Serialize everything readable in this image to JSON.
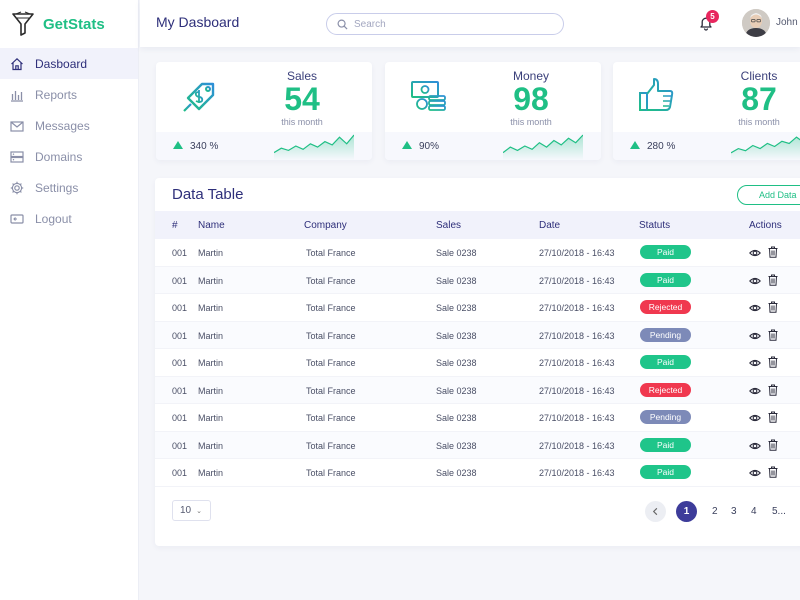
{
  "brand": {
    "part1": "Get",
    "part2": "Stats"
  },
  "sidebar": {
    "items": [
      {
        "label": "Dasboard",
        "icon": "home-icon",
        "active": true
      },
      {
        "label": "Reports",
        "icon": "bar-chart-icon",
        "active": false
      },
      {
        "label": "Messages",
        "icon": "mail-icon",
        "active": false
      },
      {
        "label": "Domains",
        "icon": "server-icon",
        "active": false
      },
      {
        "label": "Settings",
        "icon": "gear-icon",
        "active": false
      },
      {
        "label": "Logout",
        "icon": "logout-icon",
        "active": false
      }
    ]
  },
  "header": {
    "title": "My Dasboard",
    "search_placeholder": "Search",
    "notification_count": "5",
    "user_name": "John"
  },
  "cards": [
    {
      "label": "Sales",
      "value": "54",
      "sub": "this month",
      "change": "340 %",
      "icon": "price-tag-icon",
      "trend": [
        6,
        10,
        8,
        12,
        9,
        14,
        11,
        16,
        13,
        20,
        14,
        22
      ]
    },
    {
      "label": "Money",
      "value": "98",
      "sub": "this month",
      "change": "90%",
      "icon": "money-icon",
      "trend": [
        6,
        11,
        8,
        12,
        9,
        15,
        11,
        17,
        13,
        19,
        15,
        22
      ]
    },
    {
      "label": "Clients",
      "value": "87",
      "sub": "this month",
      "change": "280 %",
      "icon": "thumbs-up-icon",
      "trend": [
        5,
        9,
        7,
        12,
        9,
        14,
        11,
        16,
        14,
        20,
        15,
        22
      ]
    }
  ],
  "table": {
    "title": "Data Table",
    "add_label": "Add Data",
    "columns": [
      "#",
      "Name",
      "Company",
      "Sales",
      "Date",
      "Statuts",
      "Actions"
    ],
    "rows": [
      {
        "id": "001",
        "name": "Martin",
        "company": "Total France",
        "sales": "Sale 0238",
        "date": "27/10/2018 - 16:43",
        "status": "Paid"
      },
      {
        "id": "001",
        "name": "Martin",
        "company": "Total France",
        "sales": "Sale 0238",
        "date": "27/10/2018 - 16:43",
        "status": "Paid"
      },
      {
        "id": "001",
        "name": "Martin",
        "company": "Total France",
        "sales": "Sale 0238",
        "date": "27/10/2018 - 16:43",
        "status": "Rejected"
      },
      {
        "id": "001",
        "name": "Martin",
        "company": "Total France",
        "sales": "Sale 0238",
        "date": "27/10/2018 - 16:43",
        "status": "Pending"
      },
      {
        "id": "001",
        "name": "Martin",
        "company": "Total France",
        "sales": "Sale 0238",
        "date": "27/10/2018 - 16:43",
        "status": "Paid"
      },
      {
        "id": "001",
        "name": "Martin",
        "company": "Total France",
        "sales": "Sale 0238",
        "date": "27/10/2018 - 16:43",
        "status": "Rejected"
      },
      {
        "id": "001",
        "name": "Martin",
        "company": "Total France",
        "sales": "Sale 0238",
        "date": "27/10/2018 - 16:43",
        "status": "Pending"
      },
      {
        "id": "001",
        "name": "Martin",
        "company": "Total France",
        "sales": "Sale 0238",
        "date": "27/10/2018 - 16:43",
        "status": "Paid"
      },
      {
        "id": "001",
        "name": "Martin",
        "company": "Total France",
        "sales": "Sale 0238",
        "date": "27/10/2018 - 16:43",
        "status": "Paid"
      }
    ],
    "status_colors": {
      "Paid": "#1fc58a",
      "Rejected": "#f0384f",
      "Pending": "#7d8ab8"
    }
  },
  "pagination": {
    "per_page": "10",
    "current": "1",
    "pages": [
      "2",
      "3",
      "4",
      "5..."
    ]
  },
  "colors": {
    "accent": "#1fbf85",
    "primary": "#2e2f7a",
    "active_page": "#3d3c9a"
  }
}
